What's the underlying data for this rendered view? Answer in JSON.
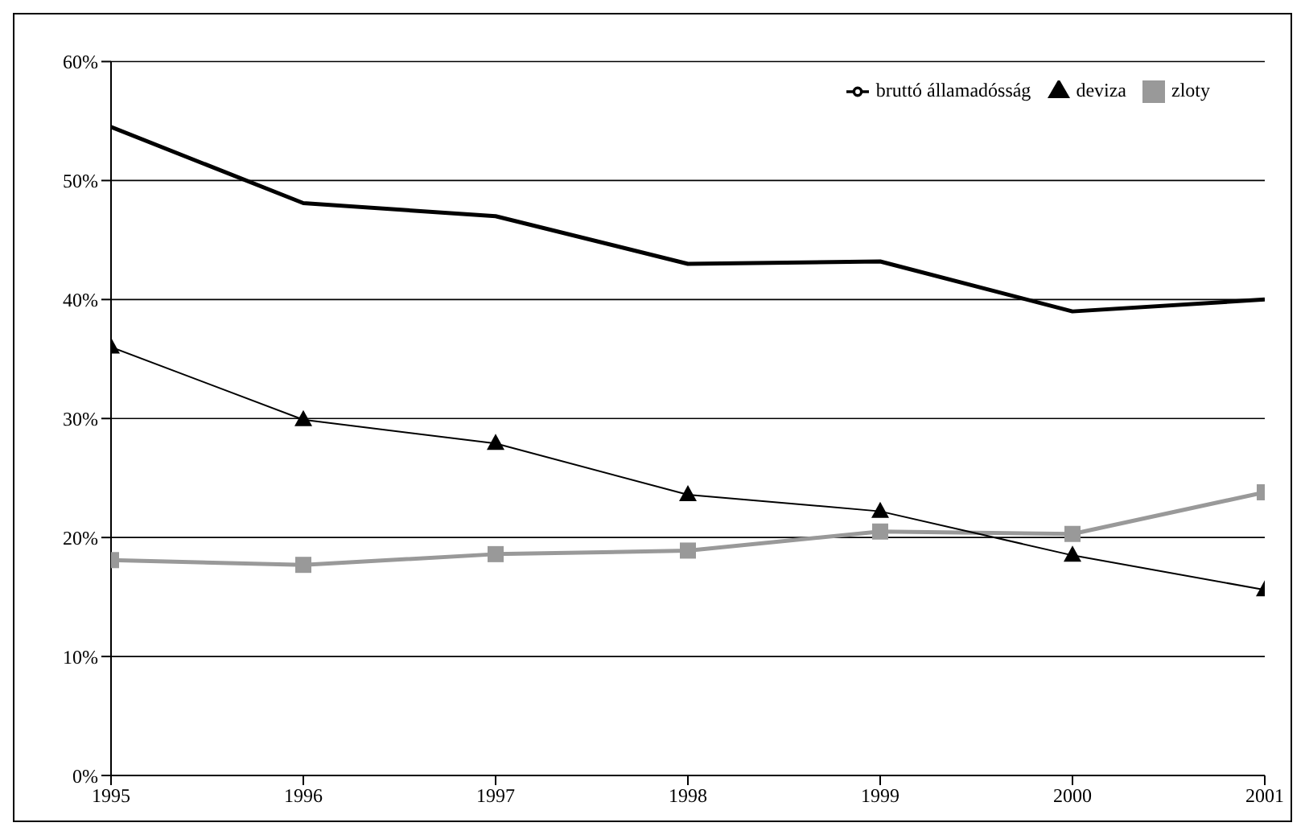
{
  "chart_data": {
    "type": "line",
    "x": [
      1995,
      1996,
      1997,
      1998,
      1999,
      2000,
      2001
    ],
    "series": [
      {
        "name": "bruttó államadósság",
        "color": "#000000",
        "marker": "none",
        "values": [
          54.5,
          48.1,
          47.0,
          43.0,
          43.2,
          39.0,
          40.0
        ]
      },
      {
        "name": "zloty",
        "color": "#999999",
        "marker": "square",
        "values": [
          18.1,
          17.7,
          18.6,
          18.9,
          20.5,
          20.3,
          23.8
        ]
      },
      {
        "name": "deviza",
        "color": "#000000",
        "marker": "triangle",
        "values": [
          36.0,
          29.9,
          27.9,
          23.6,
          22.2,
          18.5,
          15.6
        ]
      }
    ],
    "xlim": [
      1995,
      2001
    ],
    "xticks": [
      1995,
      1996,
      1997,
      1998,
      1999,
      2000,
      2001
    ],
    "ylim": [
      0,
      60
    ],
    "yticks": [
      {
        "value": 0,
        "label": "0%"
      },
      {
        "value": 10,
        "label": "10%"
      },
      {
        "value": 20,
        "label": "20%"
      },
      {
        "value": 30,
        "label": "30%"
      },
      {
        "value": 40,
        "label": "40%"
      },
      {
        "value": 50,
        "label": "50%"
      },
      {
        "value": 60,
        "label": "60%"
      }
    ],
    "grid": "y",
    "legend": "top right",
    "line_style": "solid"
  }
}
